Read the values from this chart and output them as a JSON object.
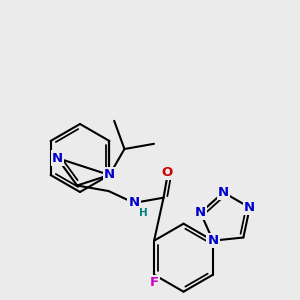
{
  "bg_color": "#ebebeb",
  "bond_color": "#000000",
  "bond_width": 1.5,
  "dbo": 0.012,
  "atom_colors": {
    "N": "#0000cc",
    "O": "#cc0000",
    "F": "#cc00cc",
    "H": "#008080",
    "C": "#000000"
  },
  "fs": 9.5,
  "fs_s": 7.5
}
